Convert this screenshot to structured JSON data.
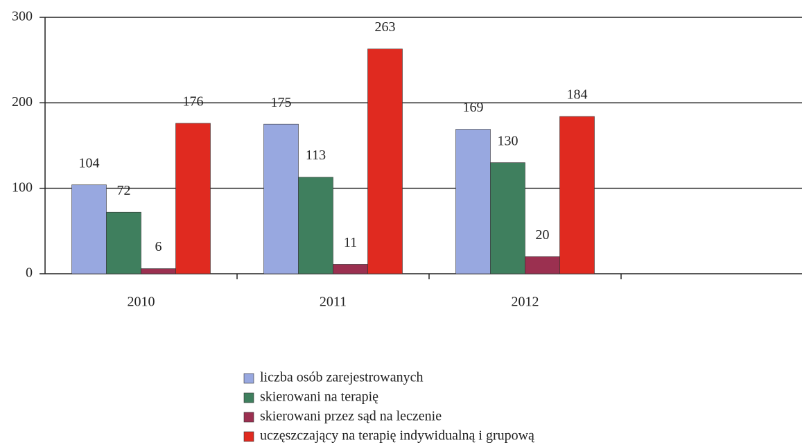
{
  "chart_data": {
    "type": "bar",
    "categories": [
      "2010",
      "2011",
      "2012"
    ],
    "series": [
      {
        "name": "liczba osób zarejestrowanych",
        "color": "#98a8e0",
        "values": [
          104,
          175,
          169
        ]
      },
      {
        "name": "skierowani na terapię",
        "color": "#3f7f5e",
        "values": [
          72,
          113,
          130
        ]
      },
      {
        "name": "skierowani przez sąd na leczenie",
        "color": "#9b3050",
        "values": [
          6,
          11,
          20
        ]
      },
      {
        "name": "uczęszczający na terapię indywidualną i grupową",
        "color": "#e02a20",
        "values": [
          176,
          263,
          184
        ]
      }
    ],
    "ylim": [
      0,
      300
    ],
    "yticks": [
      0,
      100,
      200,
      300
    ],
    "grid": true,
    "legend": "bottom"
  }
}
